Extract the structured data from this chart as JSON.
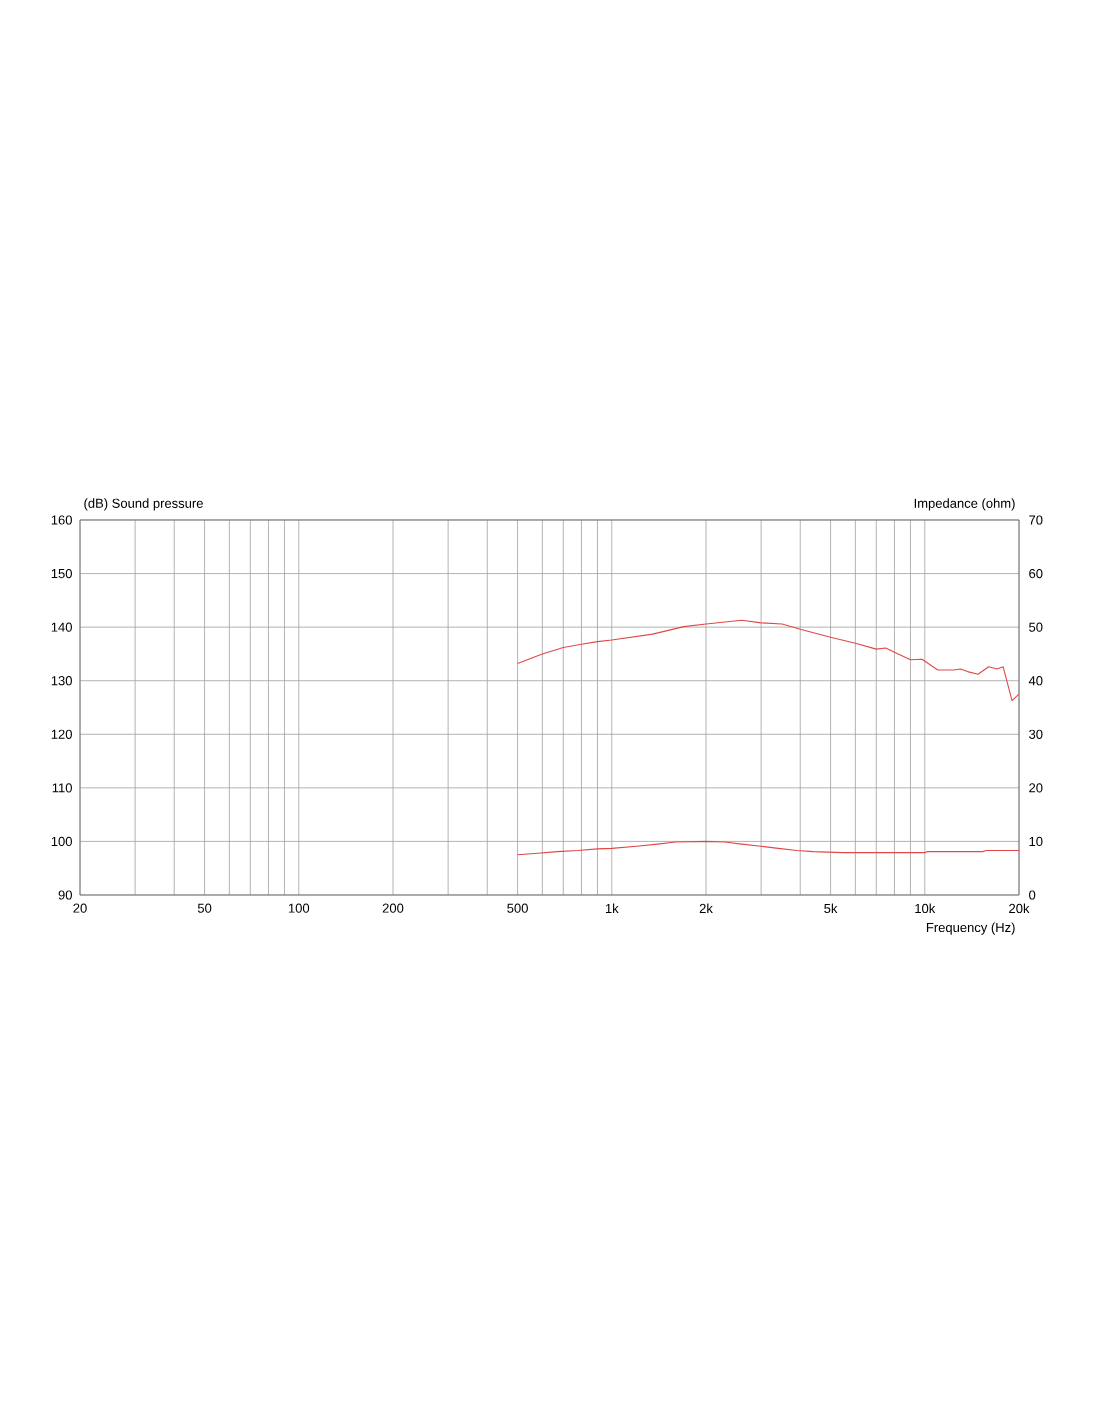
{
  "chart_data": {
    "type": "line",
    "xlabel": "Frequency  (Hz)",
    "ylabel": "(dB)  Sound pressure",
    "y2label": "Impedance  (ohm)",
    "log": "x",
    "grid": true,
    "xlim": [
      20,
      20000
    ],
    "xticks": [
      {
        "value": 20,
        "label": "20"
      },
      {
        "value": 30,
        "label": null
      },
      {
        "value": 40,
        "label": null
      },
      {
        "value": 50,
        "label": "50"
      },
      {
        "value": 60,
        "label": null
      },
      {
        "value": 70,
        "label": null
      },
      {
        "value": 80,
        "label": null
      },
      {
        "value": 90,
        "label": null
      },
      {
        "value": 100,
        "label": "100"
      },
      {
        "value": 200,
        "label": "200"
      },
      {
        "value": 300,
        "label": null
      },
      {
        "value": 400,
        "label": null
      },
      {
        "value": 500,
        "label": "500"
      },
      {
        "value": 600,
        "label": null
      },
      {
        "value": 700,
        "label": null
      },
      {
        "value": 800,
        "label": null
      },
      {
        "value": 900,
        "label": null
      },
      {
        "value": 1000,
        "label": "1k"
      },
      {
        "value": 2000,
        "label": "2k"
      },
      {
        "value": 3000,
        "label": null
      },
      {
        "value": 4000,
        "label": null
      },
      {
        "value": 5000,
        "label": "5k"
      },
      {
        "value": 6000,
        "label": null
      },
      {
        "value": 7000,
        "label": null
      },
      {
        "value": 8000,
        "label": null
      },
      {
        "value": 9000,
        "label": null
      },
      {
        "value": 10000,
        "label": "10k"
      },
      {
        "value": 20000,
        "label": "20k"
      }
    ],
    "ylim": [
      90,
      160
    ],
    "yticks": [
      90,
      100,
      110,
      120,
      130,
      140,
      150,
      160
    ],
    "y2lim": [
      0,
      70
    ],
    "y2ticks": [
      0,
      10,
      20,
      30,
      40,
      50,
      60,
      70
    ],
    "series": [
      {
        "color": "#e04848",
        "x": [
          500,
          600,
          700,
          800,
          900,
          1000,
          1350,
          1700,
          2000,
          2600,
          3000,
          3500,
          4000,
          5000,
          6000,
          7000,
          7500,
          8000,
          9000,
          9800,
          11000,
          12400,
          13000,
          13700,
          14800,
          16000,
          17000,
          17800,
          19000,
          20000
        ],
        "values": [
          133.2,
          135.0,
          136.2,
          136.8,
          137.3,
          137.6,
          138.7,
          140.1,
          140.6,
          141.3,
          140.8,
          140.6,
          139.6,
          138.1,
          137.0,
          135.9,
          136.1,
          135.3,
          133.9,
          134.0,
          132.0,
          132.0,
          132.2,
          131.7,
          131.2,
          132.6,
          132.2,
          132.6,
          126.3,
          127.5
        ]
      },
      {
        "color": "#e04848",
        "axis": "y2",
        "x": [
          500,
          580,
          670,
          780,
          900,
          1000,
          1200,
          1400,
          1600,
          2000,
          2300,
          2600,
          3000,
          3400,
          3900,
          4400,
          5500,
          6700,
          10000,
          10200,
          15300,
          15700,
          20000
        ],
        "values": [
          7.5,
          7.8,
          8.1,
          8.3,
          8.6,
          8.7,
          9.1,
          9.5,
          9.9,
          10.0,
          9.9,
          9.5,
          9.1,
          8.7,
          8.3,
          8.1,
          7.9,
          7.9,
          7.9,
          8.1,
          8.1,
          8.3,
          8.3
        ]
      }
    ]
  }
}
